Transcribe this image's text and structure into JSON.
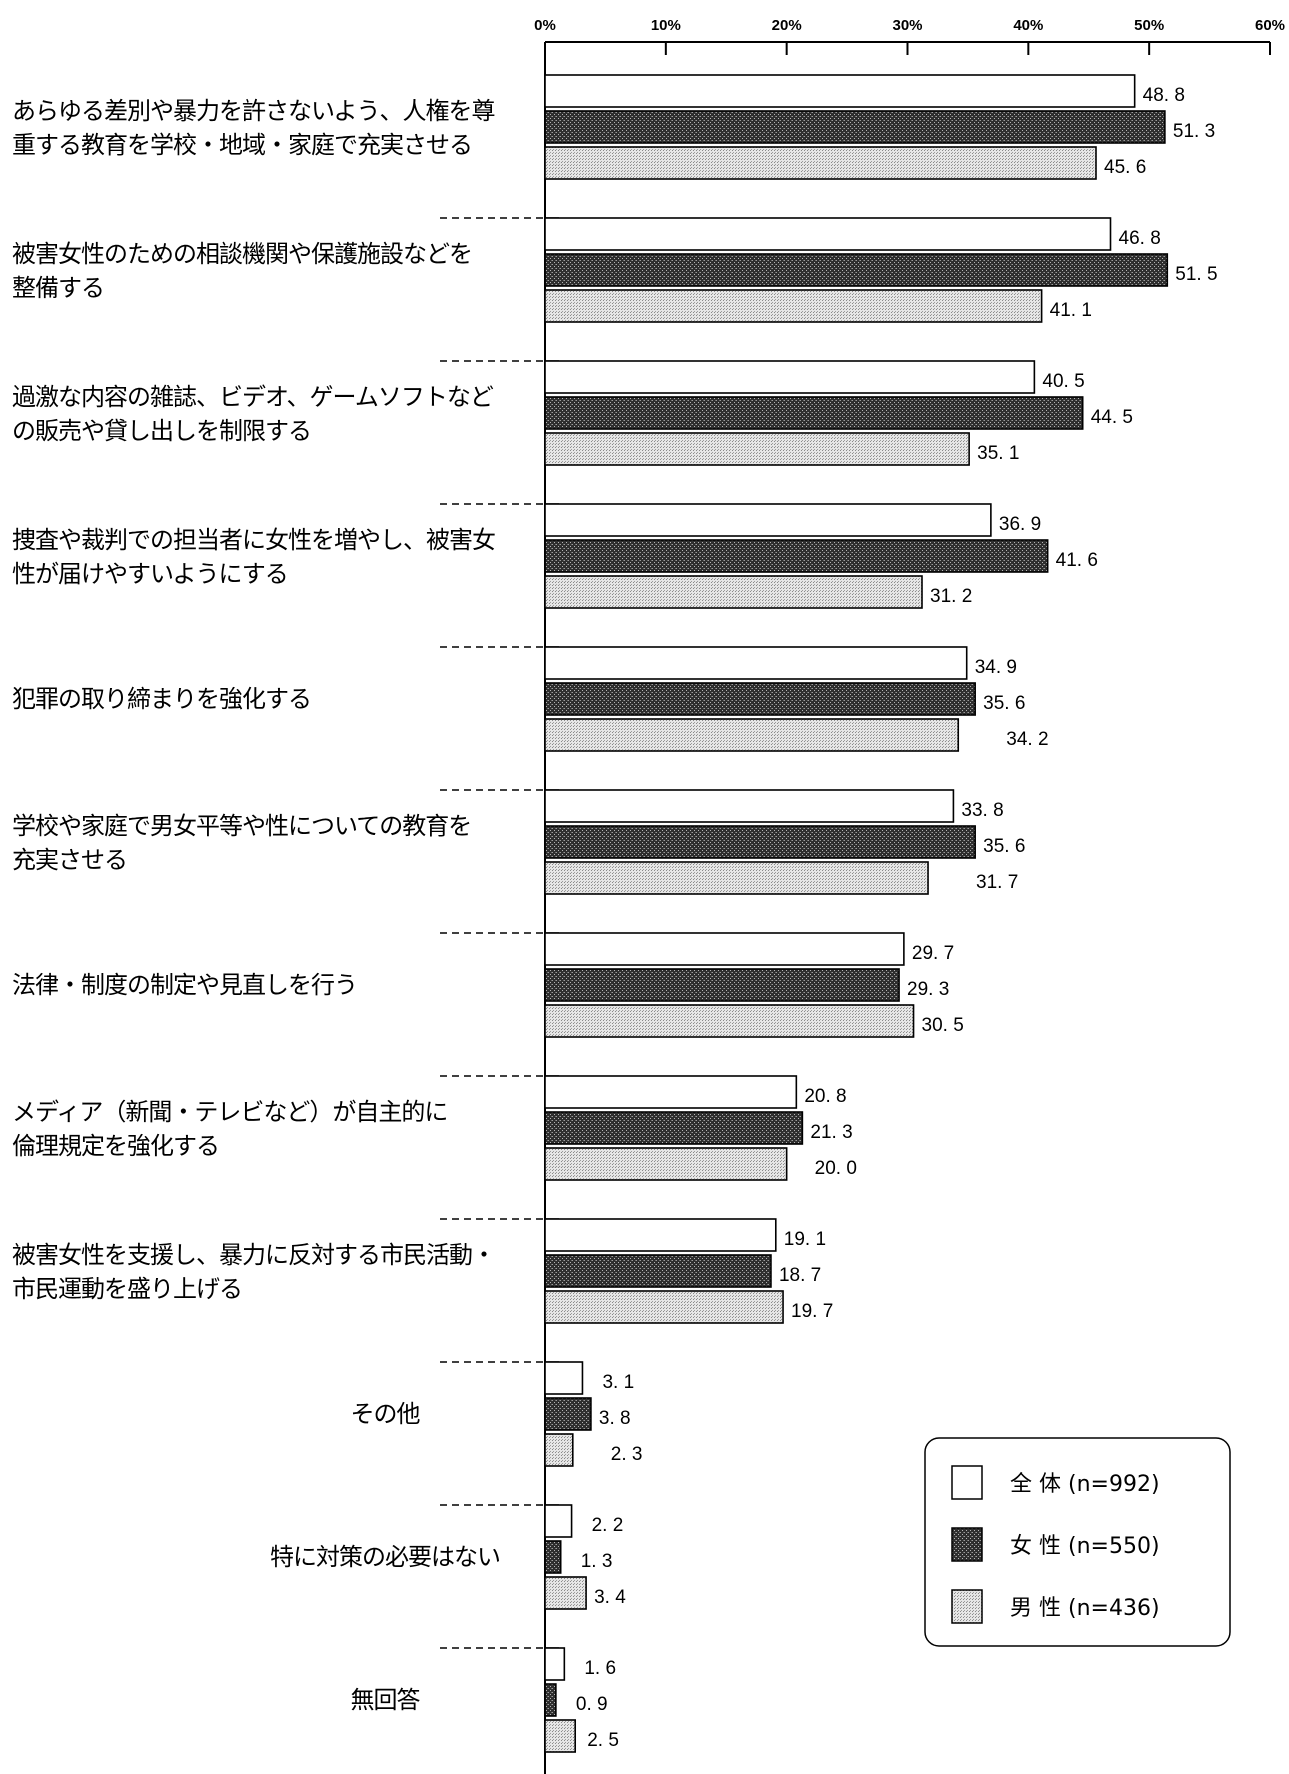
{
  "chart_data": {
    "type": "bar",
    "orientation": "horizontal",
    "xlim": [
      0,
      60
    ],
    "ticks": [
      "0%",
      "10%",
      "20%",
      "30%",
      "40%",
      "50%",
      "60%"
    ],
    "categories": [
      [
        "あらゆる差別や暴力を許さないよう、人権を尊",
        "重する教育を学校・地域・家庭で充実させる"
      ],
      [
        "被害女性のための相談機関や保護施設などを",
        "整備する"
      ],
      [
        "過激な内容の雑誌、ビデオ、ゲームソフトなど",
        "の販売や貸し出しを制限する"
      ],
      [
        "捜査や裁判での担当者に女性を増やし、被害女",
        "性が届けやすいようにする"
      ],
      [
        "犯罪の取り締まりを強化する"
      ],
      [
        "学校や家庭で男女平等や性についての教育を",
        "充実させる"
      ],
      [
        "法律・制度の制定や見直しを行う"
      ],
      [
        "メディア（新聞・テレビなど）が自主的に",
        "倫理規定を強化する"
      ],
      [
        "被害女性を支援し、暴力に反対する市民活動・",
        "市民運動を盛り上げる"
      ],
      [
        "その他"
      ],
      [
        "特に対策の必要はない"
      ],
      [
        "無回答"
      ]
    ],
    "series": [
      {
        "name": "全 体 (n=992)",
        "values": [
          48.8,
          46.8,
          40.5,
          36.9,
          34.9,
          33.8,
          29.7,
          20.8,
          19.1,
          3.1,
          2.2,
          1.6
        ],
        "labels": [
          "48. 8",
          "46. 8",
          "40. 5",
          "36. 9",
          "34. 9",
          "33. 8",
          "29. 7",
          "20. 8",
          "19. 1",
          "3. 1",
          "2. 2",
          "1. 6"
        ]
      },
      {
        "name": "女 性 (n=550)",
        "values": [
          51.3,
          51.5,
          44.5,
          41.6,
          35.6,
          35.6,
          29.3,
          21.3,
          18.7,
          3.8,
          1.3,
          0.9
        ],
        "labels": [
          "51. 3",
          "51. 5",
          "44. 5",
          "41. 6",
          "35. 6",
          "35. 6",
          "29. 3",
          "21. 3",
          "18. 7",
          "3. 8",
          "1. 3",
          "0. 9"
        ]
      },
      {
        "name": "男 性 (n=436)",
        "values": [
          45.6,
          41.1,
          35.1,
          31.2,
          34.2,
          31.7,
          30.5,
          20.0,
          19.7,
          2.3,
          3.4,
          2.5
        ],
        "labels": [
          "45. 6",
          "41. 1",
          "35. 1",
          "31. 2",
          "34. 2",
          "31. 7",
          "30. 5",
          "20. 0",
          "19. 7",
          "2. 3",
          "3. 4",
          "2. 5"
        ]
      }
    ],
    "colors": {
      "total": "#ffffff",
      "female": "#3a3a3a",
      "male": "#c4c4c4"
    },
    "legend_position": "bottom-right"
  }
}
